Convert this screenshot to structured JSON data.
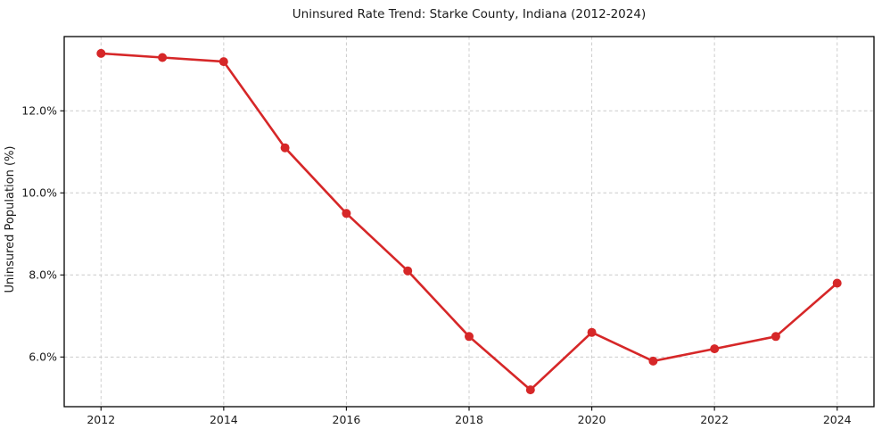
{
  "chart_data": {
    "type": "line",
    "title": "Uninsured Rate Trend: Starke County, Indiana (2012-2024)",
    "xlabel": "",
    "ylabel": "Uninsured Population (%)",
    "x": [
      2012,
      2013,
      2014,
      2015,
      2016,
      2017,
      2018,
      2019,
      2020,
      2021,
      2022,
      2023,
      2024
    ],
    "values": [
      13.4,
      13.3,
      13.2,
      11.1,
      9.5,
      8.1,
      6.5,
      5.2,
      6.6,
      5.9,
      6.2,
      6.5,
      7.8
    ],
    "xlim": [
      2011.4,
      2024.6
    ],
    "ylim": [
      4.79,
      13.81
    ],
    "xticks": [
      2012,
      2014,
      2016,
      2018,
      2020,
      2022,
      2024
    ],
    "xtick_labels": [
      "2012",
      "2014",
      "2016",
      "2018",
      "2020",
      "2022",
      "2024"
    ],
    "yticks": [
      6,
      8,
      10,
      12
    ],
    "ytick_labels": [
      "6.0%",
      "8.0%",
      "10.0%",
      "12.0%"
    ],
    "grid": true,
    "grid_style": "dashed",
    "legend": false,
    "line_color": "#d62728",
    "marker": "circle",
    "marker_radius": 5,
    "background_color": "#ffffff"
  }
}
